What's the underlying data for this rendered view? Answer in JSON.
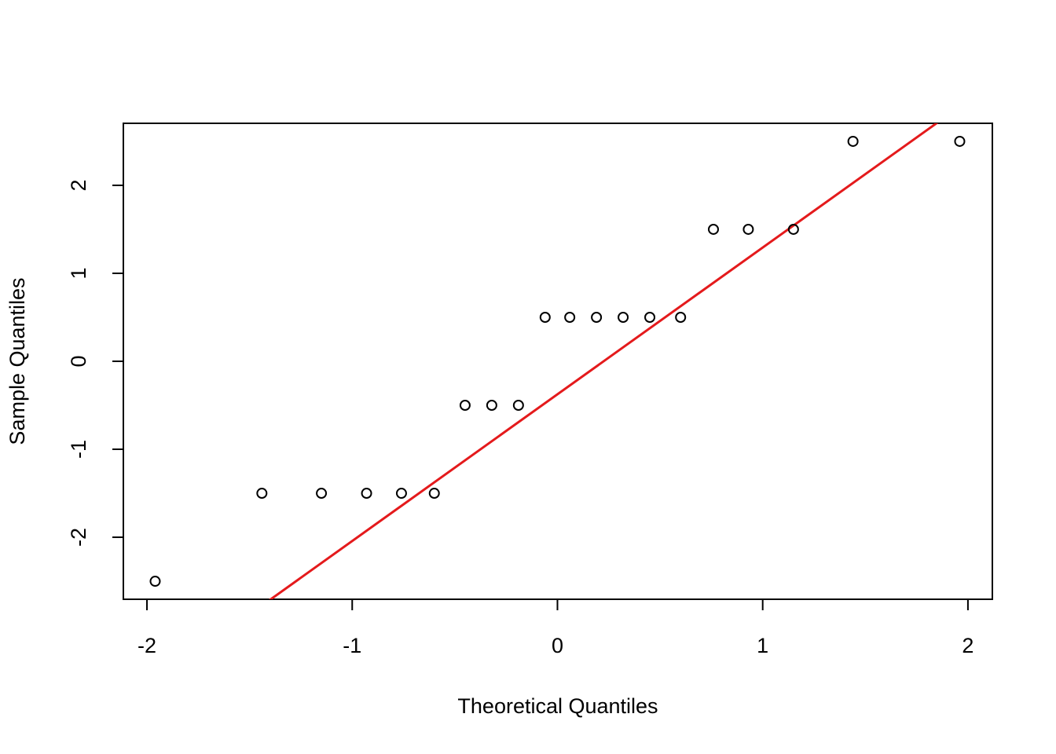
{
  "chart_data": {
    "type": "qq",
    "xlabel": "Theoretical Quantiles",
    "ylabel": "Sample Quantiles",
    "x": [
      -1.96,
      -1.44,
      -1.15,
      -0.93,
      -0.76,
      -0.6,
      -0.45,
      -0.32,
      -0.19,
      -0.06,
      0.06,
      0.19,
      0.32,
      0.45,
      0.6,
      0.76,
      0.93,
      1.15,
      1.44,
      1.96
    ],
    "values": [
      -2.5,
      -1.5,
      -1.5,
      -1.5,
      -1.5,
      -1.5,
      -0.5,
      -0.5,
      -0.5,
      0.5,
      0.5,
      0.5,
      0.5,
      0.5,
      0.5,
      1.5,
      1.5,
      1.5,
      2.5,
      2.5
    ],
    "color": "#000000",
    "line": {
      "slope": 1.668,
      "intercept": -0.375,
      "color": "#e41a1c"
    },
    "xlim": [
      -2.115,
      2.119
    ],
    "xticks": [
      -2,
      -1,
      0,
      1,
      2
    ],
    "ylim": [
      -2.705,
      2.705
    ],
    "yticks": [
      -2,
      -1,
      0,
      1,
      2
    ]
  }
}
